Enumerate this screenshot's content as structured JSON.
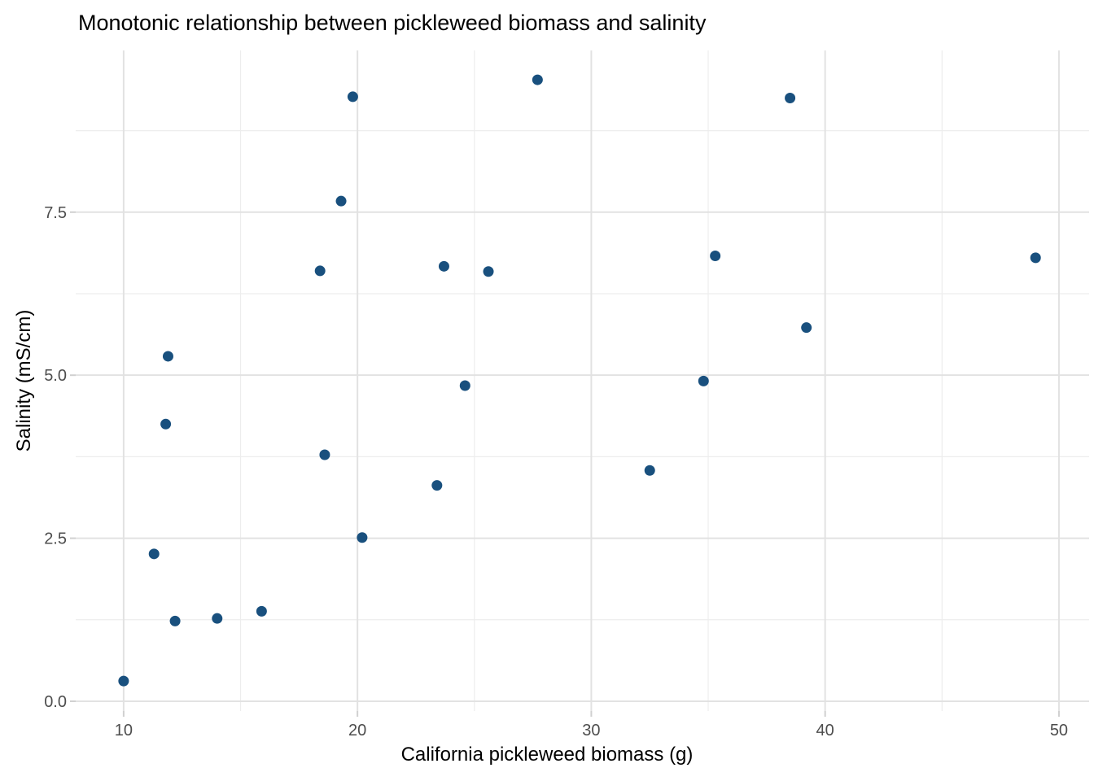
{
  "chart_data": {
    "type": "scatter",
    "title": "Monotonic relationship between pickleweed biomass and salinity",
    "xlabel": "California pickleweed biomass (g)",
    "ylabel": "Salinity (mS/cm)",
    "legend": "none",
    "grid": "major-and-minor",
    "xlim": [
      7.95,
      51.29
    ],
    "ylim": [
      -0.15,
      9.98
    ],
    "x_tick_values": [
      10,
      20,
      30,
      40,
      50
    ],
    "x_tick_labels": [
      "10",
      "20",
      "30",
      "40",
      "50"
    ],
    "x_minor_tick_values": [
      15,
      25,
      35,
      45
    ],
    "y_tick_values": [
      0,
      2.5,
      5,
      7.5
    ],
    "y_tick_labels": [
      "0.0",
      "2.5",
      "5.0",
      "7.5"
    ],
    "y_minor_tick_values": [
      1.25,
      3.75,
      6.25,
      8.75
    ],
    "series": [
      {
        "name": "samples",
        "points": [
          [
            10.0,
            0.31
          ],
          [
            11.3,
            2.26
          ],
          [
            11.8,
            4.25
          ],
          [
            11.9,
            5.29
          ],
          [
            12.2,
            1.23
          ],
          [
            14.0,
            1.27
          ],
          [
            15.9,
            1.38
          ],
          [
            18.4,
            6.6
          ],
          [
            18.6,
            3.78
          ],
          [
            19.3,
            7.67
          ],
          [
            19.8,
            9.27
          ],
          [
            20.2,
            2.51
          ],
          [
            23.4,
            3.31
          ],
          [
            23.7,
            6.67
          ],
          [
            24.6,
            4.84
          ],
          [
            25.6,
            6.59
          ],
          [
            27.7,
            9.53
          ],
          [
            32.5,
            3.54
          ],
          [
            34.8,
            4.91
          ],
          [
            35.3,
            6.83
          ],
          [
            38.5,
            9.25
          ],
          [
            39.2,
            5.73
          ],
          [
            49.0,
            6.8
          ]
        ]
      }
    ]
  },
  "style": {
    "point_color": "#19507E",
    "major_grid_color": "#E2E2E2",
    "minor_grid_color": "#EDEDED",
    "tick_mark_color": "#D0D0D0",
    "tick_label_color": "#4D4D4D",
    "background_color": "#FFFFFF"
  }
}
